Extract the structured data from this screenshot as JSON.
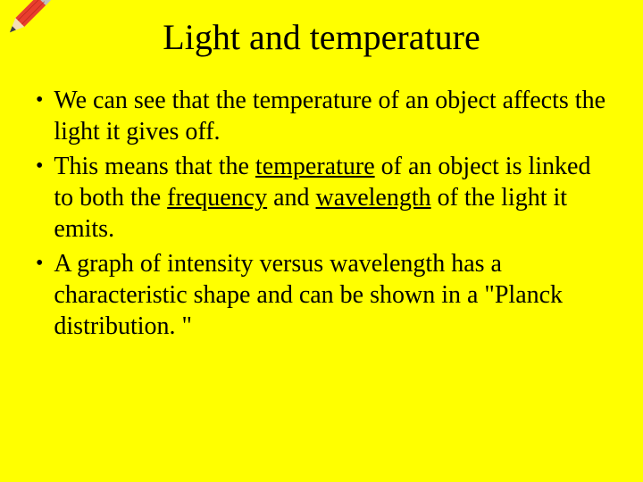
{
  "slide": {
    "background_color": "#ffff00",
    "text_color": "#000000",
    "font_family": "Comic Sans MS",
    "title": "Light and temperature",
    "title_fontsize": 40,
    "body_fontsize": 28,
    "bullets": [
      {
        "segments": [
          {
            "text": "We can see that the temperature of an object affects the light it gives off.",
            "underline": false
          }
        ]
      },
      {
        "segments": [
          {
            "text": "This means that the ",
            "underline": false
          },
          {
            "text": "temperature",
            "underline": true
          },
          {
            "text": " of an object is linked to both the ",
            "underline": false
          },
          {
            "text": "frequency",
            "underline": true
          },
          {
            "text": " and ",
            "underline": false
          },
          {
            "text": "wavelength",
            "underline": true
          },
          {
            "text": " of the light it emits.",
            "underline": false
          }
        ]
      },
      {
        "segments": [
          {
            "text": "A graph of intensity versus wavelength has a characteristic shape and can be shown in a \"Planck distribution. \"",
            "underline": false
          }
        ]
      }
    ],
    "icon": {
      "name": "pencil",
      "body_color": "#e83e2e",
      "ferrule_color": "#c0c0c0",
      "tip_wood": "#f5deb3",
      "tip_lead": "#404040"
    }
  }
}
